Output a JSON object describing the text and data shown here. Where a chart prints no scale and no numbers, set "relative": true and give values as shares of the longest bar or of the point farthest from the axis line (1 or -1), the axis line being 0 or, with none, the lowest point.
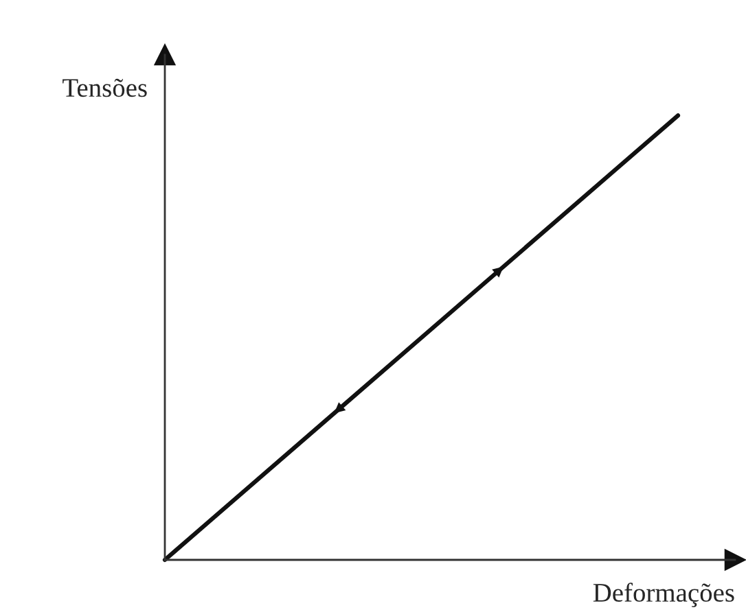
{
  "chart_data": {
    "type": "line",
    "relative": true,
    "xlabel": "Deformações",
    "ylabel": "Tensões",
    "categories": [
      null,
      null
    ],
    "series": [
      {
        "color": "#111111",
        "values": [
          0,
          1
        ]
      }
    ]
  }
}
